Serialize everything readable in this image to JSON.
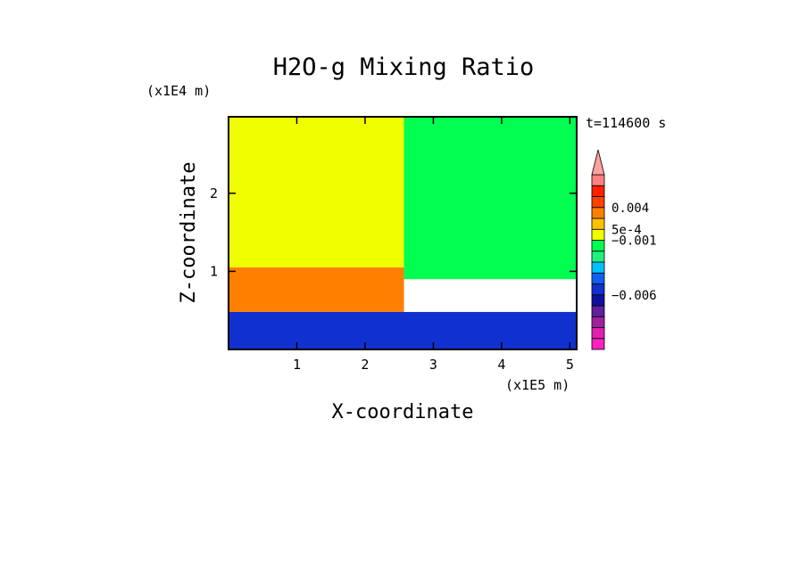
{
  "chart_data": {
    "type": "heatmap",
    "title": "H2O-g Mixing Ratio",
    "xlabel": "X-coordinate",
    "ylabel": "Z-coordinate",
    "x_scale_label": "(x1E5 m)",
    "y_scale_label": "(x1E4 m)",
    "time_label": "t=114600 s",
    "xlim": [
      0,
      5.1
    ],
    "ylim": [
      0,
      2.98
    ],
    "x_ticks": [
      "1",
      "2",
      "3",
      "4",
      "5"
    ],
    "y_ticks": [
      "1",
      "2"
    ],
    "colorbar": {
      "labels": [
        "0.004",
        "5e-4",
        "−0.001",
        "−0.006"
      ],
      "levels": [
        {
          "color": "#ff20c0"
        },
        {
          "color": "#e020b0"
        },
        {
          "color": "#a020a0"
        },
        {
          "color": "#6020a0"
        },
        {
          "color": "#1010a0"
        },
        {
          "color": "#1030d0"
        },
        {
          "color": "#1060f0"
        },
        {
          "color": "#00c0ff"
        },
        {
          "color": "#20f080"
        },
        {
          "color": "#00ff50"
        },
        {
          "color": "#f0ff00"
        },
        {
          "color": "#ffc000"
        },
        {
          "color": "#ff8000"
        },
        {
          "color": "#ff4000"
        },
        {
          "color": "#ff2000"
        },
        {
          "color": "#ff8080"
        }
      ],
      "extend_top_color": "#ffa0a0"
    },
    "regions": [
      {
        "name": "upper-left",
        "x": [
          0,
          2.57
        ],
        "z": [
          1.05,
          2.98
        ],
        "color": "#f0ff00"
      },
      {
        "name": "upper-right",
        "x": [
          2.57,
          5.1
        ],
        "z": [
          0.9,
          2.98
        ],
        "color": "#00ff50"
      },
      {
        "name": "mid-left",
        "x": [
          0,
          2.57
        ],
        "z": [
          0.48,
          1.05
        ],
        "color": "#ff8000"
      },
      {
        "name": "lower",
        "x": [
          0,
          5.1
        ],
        "z": [
          0,
          0.48
        ],
        "color": "#1030d0"
      }
    ]
  }
}
